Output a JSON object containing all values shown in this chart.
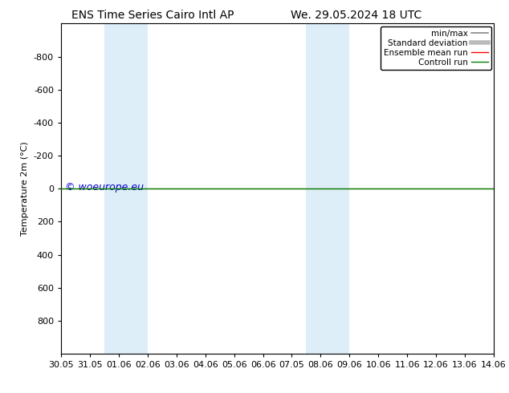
{
  "title_left": "ENS Time Series Cairo Intl AP",
  "title_right": "We. 29.05.2024 18 UTC",
  "ylabel": "Temperature 2m (°C)",
  "watermark": "© woeurope.eu",
  "x_tick_labels": [
    "30.05",
    "31.05",
    "01.06",
    "02.06",
    "03.06",
    "04.06",
    "05.06",
    "06.06",
    "07.05",
    "08.06",
    "09.06",
    "10.06",
    "11.06",
    "12.06",
    "13.06",
    "14.06"
  ],
  "x_tick_positions": [
    0,
    1,
    2,
    3,
    4,
    5,
    6,
    7,
    8,
    9,
    10,
    11,
    12,
    13,
    14,
    15
  ],
  "ylim_bottom": 1000,
  "ylim_top": -1000,
  "yticks": [
    -800,
    -600,
    -400,
    -200,
    0,
    200,
    400,
    600,
    800
  ],
  "shaded_bands": [
    [
      1.5,
      2.0
    ],
    [
      2.0,
      3.0
    ],
    [
      8.5,
      9.0
    ],
    [
      9.0,
      10.0
    ]
  ],
  "shaded_color": "#ddeef8",
  "horizontal_line_y": 0,
  "line_color_ensemble": "#ff0000",
  "line_color_control": "#008000",
  "line_color_minmax": "#888888",
  "line_color_std": "#bbbbbb",
  "legend_entries": [
    "min/max",
    "Standard deviation",
    "Ensemble mean run",
    "Controll run"
  ],
  "legend_colors": [
    "#888888",
    "#bbbbbb",
    "#ff0000",
    "#008000"
  ],
  "background_color": "#ffffff",
  "plot_bg_color": "#ffffff",
  "spine_color": "#000000",
  "title_fontsize": 10,
  "axis_fontsize": 8,
  "watermark_color": "#0000cc",
  "watermark_fontsize": 9
}
